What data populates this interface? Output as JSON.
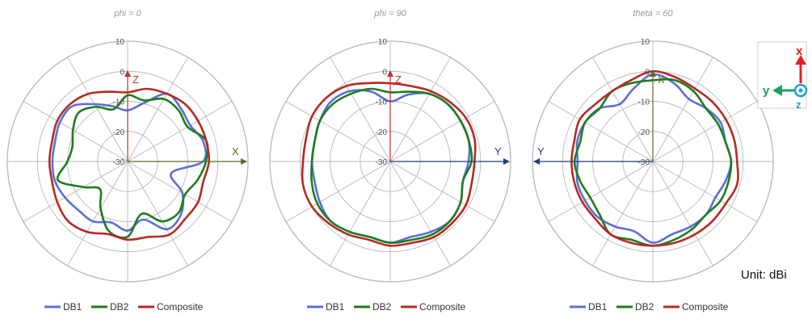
{
  "unit_label": "Unit: dBi",
  "colors": {
    "DB1": "#5b6fd6",
    "DB2": "#1e7d1e",
    "Composite": "#b52a25",
    "grid": "#b8b8b8"
  },
  "triad": {
    "x_label": "x",
    "x_color": "#e02020",
    "y_label": "y",
    "y_color": "#19a35a",
    "z_label": "z",
    "z_color": "#1c9fd8"
  },
  "chart_data": [
    {
      "type": "polar",
      "title": "phi = 0",
      "rlim": [
        -30,
        10
      ],
      "r_ticks": [
        "-30",
        "-20",
        "-10",
        "0",
        "10"
      ],
      "angle_step_deg": 30,
      "axes": {
        "vertical": {
          "label": "Z",
          "color": "#c0302a"
        },
        "horizontal": {
          "label": "X",
          "color": "#5a6a2a"
        }
      },
      "legend": [
        "DB1",
        "DB2",
        "Composite"
      ],
      "angles_deg": [
        0,
        15,
        30,
        45,
        60,
        75,
        90,
        105,
        120,
        135,
        150,
        165,
        180,
        195,
        210,
        225,
        240,
        255,
        270,
        285,
        300,
        315,
        330,
        345
      ],
      "series": [
        {
          "name": "DB1",
          "values": [
            -13,
            -10,
            -4,
            -5,
            -6,
            -4,
            -5,
            -15,
            -9,
            -5,
            -4,
            -10,
            -7,
            -9,
            -7,
            -7,
            -6,
            -5,
            -5,
            -5,
            -4,
            -4,
            -8,
            -11
          ]
        },
        {
          "name": "DB2",
          "values": [
            -8,
            -9,
            -6,
            -6,
            -7,
            -3,
            -4,
            -6,
            -8,
            -6,
            -7,
            -12,
            -5,
            -6,
            -12,
            -17,
            -13,
            -6,
            -10,
            -11,
            -9,
            -7,
            -9,
            -12
          ]
        },
        {
          "name": "Composite",
          "values": [
            -7,
            -5,
            -4,
            -3,
            -3,
            -3,
            -3,
            -4,
            -3,
            -3,
            -2,
            -4,
            -4,
            -5,
            -3,
            -2,
            -3,
            -4,
            -4,
            -4,
            -3,
            -3,
            -4,
            -6
          ]
        }
      ]
    },
    {
      "type": "polar",
      "title": "phi = 90",
      "rlim": [
        -30,
        10
      ],
      "r_ticks": [
        "-30",
        "-20",
        "-10",
        "0",
        "10"
      ],
      "angle_step_deg": 30,
      "axes": {
        "vertical": {
          "label": "Z",
          "color": "#c0302a"
        },
        "horizontal": {
          "label": "Y",
          "color": "#1f3f7a"
        }
      },
      "legend": [
        "DB1",
        "DB2",
        "Composite"
      ],
      "angles_deg": [
        0,
        15,
        30,
        45,
        60,
        75,
        90,
        105,
        120,
        135,
        150,
        165,
        180,
        195,
        210,
        225,
        240,
        255,
        270,
        285,
        300,
        315,
        330,
        345
      ],
      "series": [
        {
          "name": "DB1",
          "values": [
            -10,
            -7,
            -4,
            -3,
            -3,
            -3,
            -4,
            -5,
            -3,
            -2,
            -3,
            -4,
            -3,
            -4,
            -3,
            -2,
            -3,
            -4,
            -4,
            -4,
            -3,
            -2,
            -3,
            -6
          ]
        },
        {
          "name": "DB2",
          "values": [
            -7,
            -6,
            -4,
            -3,
            -3,
            -3,
            -3,
            -5,
            -3,
            -2,
            -2,
            -3,
            -3,
            -4,
            -3,
            -2,
            -2,
            -3,
            -4,
            -4,
            -3,
            -3,
            -4,
            -5
          ]
        },
        {
          "name": "Composite",
          "values": [
            -4,
            -4,
            -3,
            -2,
            -1,
            -1,
            -2,
            -2,
            -1,
            -1,
            -1,
            -2,
            -2,
            -3,
            -2,
            -1,
            0,
            0,
            -1,
            -1,
            0,
            0,
            -1,
            -3
          ]
        }
      ]
    },
    {
      "type": "polar",
      "title": "theta = 60",
      "rlim": [
        -30,
        10
      ],
      "r_ticks": [
        "-30",
        "-20",
        "-10",
        "0",
        "10"
      ],
      "angle_step_deg": 30,
      "axes": {
        "vertical": {
          "label": "X",
          "color": "#5a6a2a"
        },
        "horizontal": {
          "label": "Y",
          "color": "#1f3f7a"
        }
      },
      "legend": [
        "DB1",
        "DB2",
        "Composite"
      ],
      "angles_deg": [
        0,
        15,
        30,
        45,
        60,
        75,
        90,
        105,
        120,
        135,
        150,
        165,
        180,
        195,
        210,
        225,
        240,
        255,
        270,
        285,
        300,
        315,
        330,
        345
      ],
      "series": [
        {
          "name": "DB1",
          "values": [
            -1,
            -3,
            -6,
            -5,
            -4,
            -5,
            -4,
            -5,
            -6,
            -5,
            -5,
            -5,
            -3,
            -6,
            -5,
            -4,
            -4,
            -4,
            -5,
            -4,
            -4,
            -5,
            -8,
            -5
          ]
        },
        {
          "name": "DB2",
          "values": [
            -3,
            -2,
            -3,
            -5,
            -5,
            -5,
            -4,
            -4,
            -4,
            -5,
            -4,
            -3,
            -2,
            -3,
            -2,
            -5,
            -6,
            -5,
            -4,
            -5,
            -4,
            -5,
            -3,
            -3
          ]
        },
        {
          "name": "Composite",
          "values": [
            0,
            -1,
            -2,
            -2,
            -2,
            -2,
            -2,
            -1,
            -2,
            -2,
            -2,
            -2,
            -2,
            -2,
            -2,
            -3,
            -3,
            -3,
            -3,
            -3,
            -2,
            -3,
            -3,
            -2
          ]
        }
      ]
    }
  ]
}
